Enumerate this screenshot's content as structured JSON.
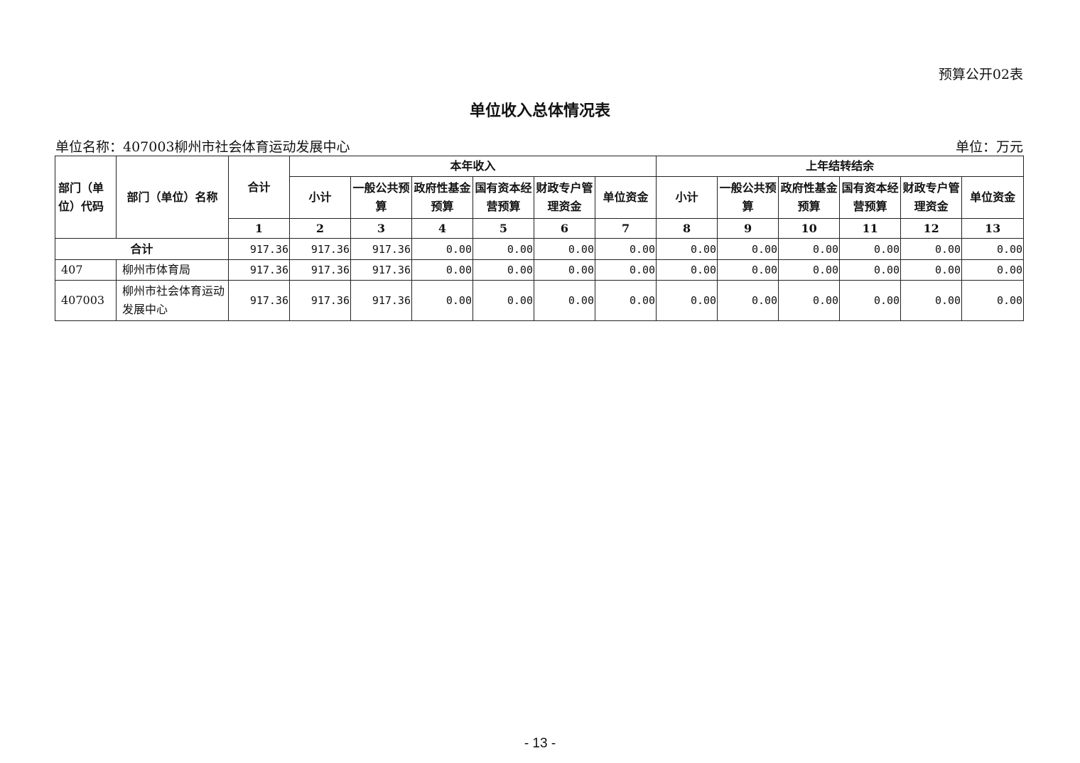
{
  "form_no": "预算公开02表",
  "title": "单位收入总体情况表",
  "unit_name": "单位名称：407003柳州市社会体育运动发展中心",
  "unit": "单位：万元",
  "headers": {
    "code": "部门（单位）代码",
    "name": "部门（单位）名称",
    "total": "合计",
    "current_year": "本年收入",
    "carryover": "上年结转结余",
    "current_cols": [
      "小计",
      "一般公共预算",
      "政府性基金预算",
      "国有资本经营预算",
      "财政专户管理资金",
      "单位资金"
    ],
    "carryover_cols": [
      "小计",
      "一般公共预算",
      "政府性基金预算",
      "国有资本经营预算",
      "财政专户管理资金",
      "单位资金"
    ],
    "col_numbers": [
      "1",
      "2",
      "3",
      "4",
      "5",
      "6",
      "7",
      "8",
      "9",
      "10",
      "11",
      "12",
      "13"
    ]
  },
  "total_row": {
    "label": "合计",
    "values": [
      "917.36",
      "917.36",
      "917.36",
      "0.00",
      "0.00",
      "0.00",
      "0.00",
      "0.00",
      "0.00",
      "0.00",
      "0.00",
      "0.00",
      "0.00"
    ]
  },
  "rows": [
    {
      "code": "407",
      "name": "柳州市体育局",
      "values": [
        "917.36",
        "917.36",
        "917.36",
        "0.00",
        "0.00",
        "0.00",
        "0.00",
        "0.00",
        "0.00",
        "0.00",
        "0.00",
        "0.00",
        "0.00"
      ]
    },
    {
      "code": "407003",
      "name": "柳州市社会体育运动发展中心",
      "values": [
        "917.36",
        "917.36",
        "917.36",
        "0.00",
        "0.00",
        "0.00",
        "0.00",
        "0.00",
        "0.00",
        "0.00",
        "0.00",
        "0.00",
        "0.00"
      ]
    }
  ],
  "page_number": "- 13 -"
}
